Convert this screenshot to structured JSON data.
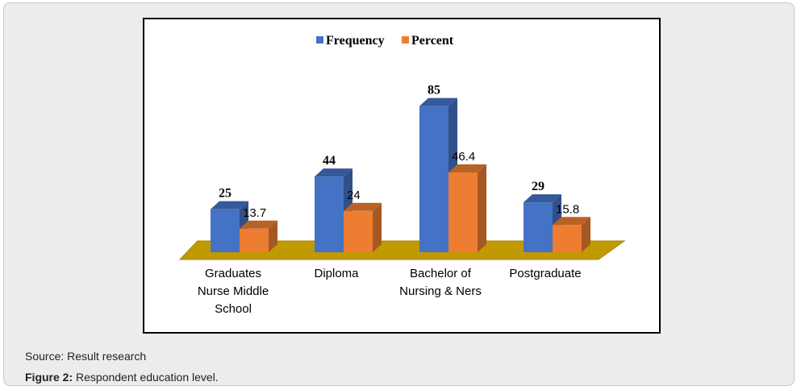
{
  "chart_data": {
    "type": "bar",
    "title": "",
    "categories": [
      [
        "Graduates",
        "Nurse Middle",
        "School"
      ],
      [
        "Diploma"
      ],
      [
        "Bachelor of",
        "Nursing & Ners"
      ],
      [
        "Postgraduate"
      ]
    ],
    "series": [
      {
        "name": "Frequency",
        "values": [
          25,
          44,
          85,
          29
        ],
        "labels": [
          "25",
          "44",
          "85",
          "29"
        ],
        "color": "#4472c4",
        "label_bold": true
      },
      {
        "name": "Percent",
        "values": [
          13.7,
          24,
          46.4,
          15.8
        ],
        "labels": [
          "13.7",
          "24",
          "46.4",
          "15.8"
        ],
        "color": "#ed7d31",
        "label_bold": false
      }
    ],
    "ylim": [
      0,
      90
    ],
    "floor_color": "#c09a00",
    "legend_position": "top-center",
    "xlabel": "",
    "ylabel": ""
  },
  "source_text": "Source: Result research",
  "figure_label": "Figure 2:",
  "figure_text": "Respondent education level."
}
